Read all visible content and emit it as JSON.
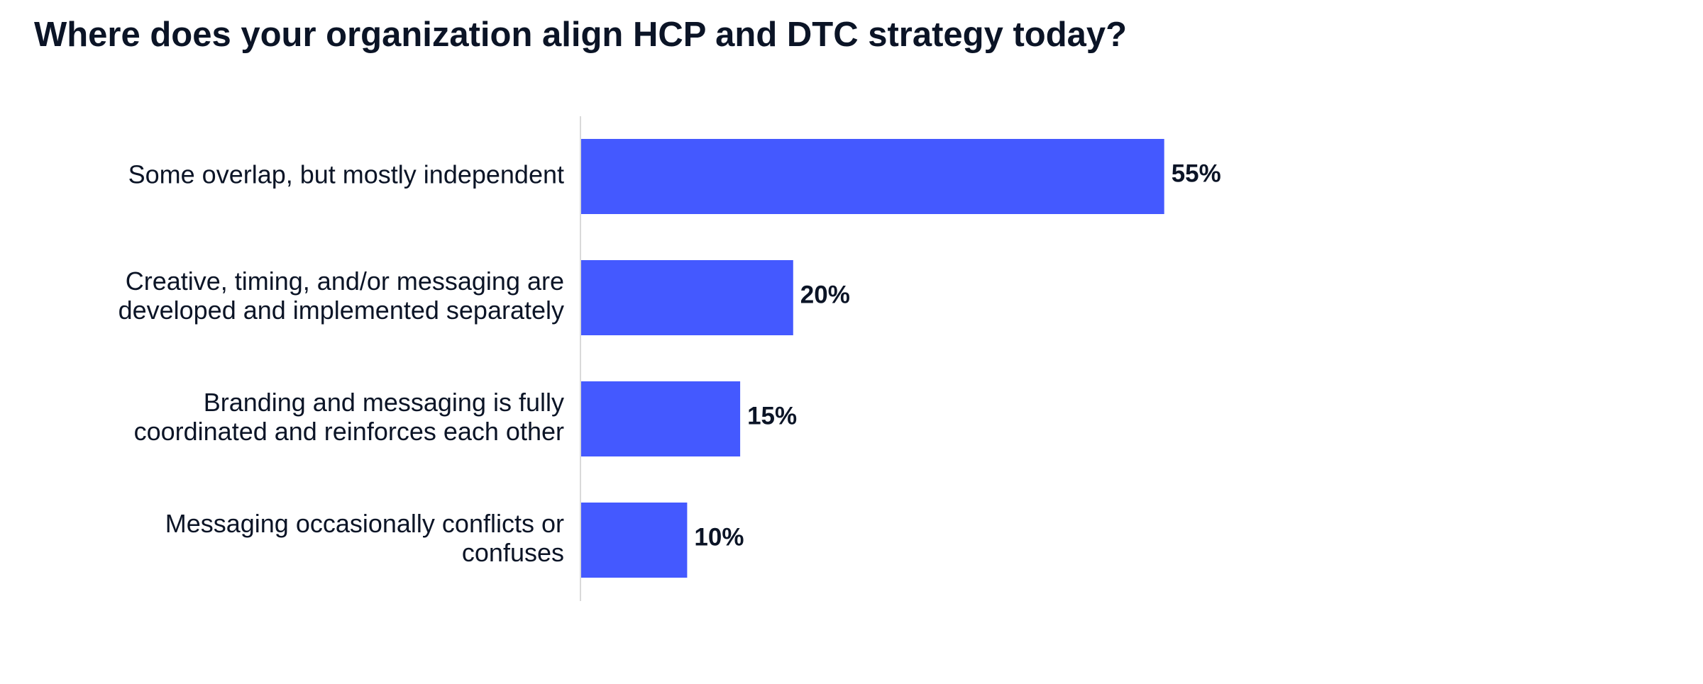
{
  "chart_data": {
    "type": "bar",
    "orientation": "horizontal",
    "title": "Where does your organization align HCP and DTC strategy today?",
    "categories": [
      "Some overlap, but mostly independent",
      "Creative, timing, and/or messaging are developed and implemented separately",
      "Branding and messaging is fully coordinated and reinforces each other",
      "Messaging occasionally conflicts or confuses"
    ],
    "category_lines": [
      [
        "Some overlap, but mostly independent"
      ],
      [
        "Creative, timing, and/or messaging are",
        "developed and implemented separately"
      ],
      [
        "Branding and messaging is fully",
        "coordinated and reinforces each other"
      ],
      [
        "Messaging occasionally conflicts or",
        "confuses"
      ]
    ],
    "values": [
      55,
      20,
      15,
      10
    ],
    "value_labels": [
      "55%",
      "20%",
      "15%",
      "10%"
    ],
    "unit": "%",
    "xlim": [
      0,
      100
    ],
    "xlabel": "",
    "ylabel": "",
    "grid": false,
    "legend": "none",
    "colors": {
      "bar": "#4459ff",
      "text": "#0b1426",
      "axis": "#d9d9d9"
    }
  }
}
